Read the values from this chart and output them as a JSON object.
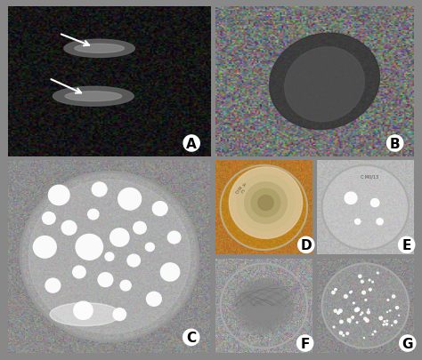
{
  "figure_bg": "#888888",
  "labels": [
    "A",
    "B",
    "C",
    "D",
    "E",
    "F",
    "G"
  ],
  "label_fontsize": 11,
  "fig_width": 4.74,
  "fig_height": 4.06,
  "dpi": 100
}
